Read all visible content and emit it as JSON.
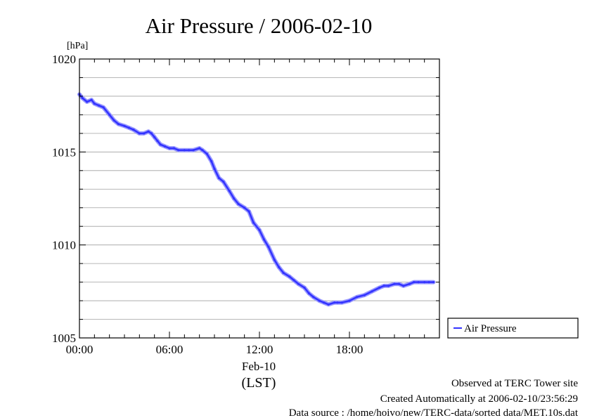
{
  "chart_data": {
    "type": "line",
    "title": "Air Pressure / 2006-02-10",
    "ylabel": "[hPa]",
    "xlabel": "(LST)",
    "date_label": "Feb-10",
    "x_range_hours": [
      0,
      24
    ],
    "ylim": [
      1005,
      1020
    ],
    "y_ticks": [
      {
        "value": 1005,
        "label": "1005"
      },
      {
        "value": 1010,
        "label": "1010"
      },
      {
        "value": 1015,
        "label": "1015"
      },
      {
        "value": 1020,
        "label": "1020"
      }
    ],
    "y_minor_step": 1,
    "x_ticks": [
      {
        "value": 0,
        "label": "00:00"
      },
      {
        "value": 6,
        "label": "06:00"
      },
      {
        "value": 12,
        "label": "12:00"
      },
      {
        "value": 18,
        "label": "18:00"
      }
    ],
    "grid": true,
    "legend_position": "right, outside plot, bottom",
    "series": [
      {
        "name": "Air Pressure",
        "color": "#3333ff",
        "marker_color": "#9999ff",
        "x": [
          0.0,
          0.2,
          0.5,
          0.8,
          1.0,
          1.3,
          1.6,
          2.0,
          2.3,
          2.6,
          3.0,
          3.3,
          3.6,
          4.0,
          4.3,
          4.6,
          4.8,
          5.0,
          5.2,
          5.4,
          5.7,
          6.0,
          6.3,
          6.6,
          7.0,
          7.3,
          7.6,
          8.0,
          8.2,
          8.5,
          8.8,
          9.0,
          9.3,
          9.6,
          10.0,
          10.3,
          10.6,
          11.0,
          11.3,
          11.6,
          12.0,
          12.3,
          12.6,
          13.0,
          13.3,
          13.6,
          14.0,
          14.3,
          14.6,
          15.0,
          15.3,
          15.6,
          16.0,
          16.3,
          16.6,
          17.0,
          17.2,
          17.5,
          18.0,
          18.5,
          19.0,
          19.5,
          20.0,
          20.3,
          20.6,
          21.0,
          21.3,
          21.6,
          22.0,
          22.3,
          22.6,
          23.0,
          23.3,
          23.6
        ],
        "values": [
          1018.1,
          1017.9,
          1017.7,
          1017.8,
          1017.6,
          1017.5,
          1017.4,
          1017.0,
          1016.7,
          1016.5,
          1016.4,
          1016.3,
          1016.2,
          1016.0,
          1016.0,
          1016.1,
          1016.0,
          1015.8,
          1015.6,
          1015.4,
          1015.3,
          1015.2,
          1015.2,
          1015.1,
          1015.1,
          1015.1,
          1015.1,
          1015.2,
          1015.1,
          1014.9,
          1014.5,
          1014.1,
          1013.6,
          1013.4,
          1012.9,
          1012.5,
          1012.2,
          1012.0,
          1011.8,
          1011.2,
          1010.8,
          1010.3,
          1009.9,
          1009.2,
          1008.8,
          1008.5,
          1008.3,
          1008.1,
          1007.9,
          1007.7,
          1007.4,
          1007.2,
          1007.0,
          1006.9,
          1006.8,
          1006.9,
          1006.9,
          1006.9,
          1007.0,
          1007.2,
          1007.3,
          1007.5,
          1007.7,
          1007.8,
          1007.8,
          1007.9,
          1007.9,
          1007.8,
          1007.9,
          1008.0,
          1008.0,
          1008.0,
          1008.0,
          1008.0
        ]
      }
    ]
  },
  "footer": {
    "line1": "Observed at TERC Tower site",
    "line2": "Created Automatically at 2006-02-10/23:56:29",
    "line3": "Data source : /home/hoivo/new/TERC-data/sorted  data/MET.10s.dat"
  }
}
